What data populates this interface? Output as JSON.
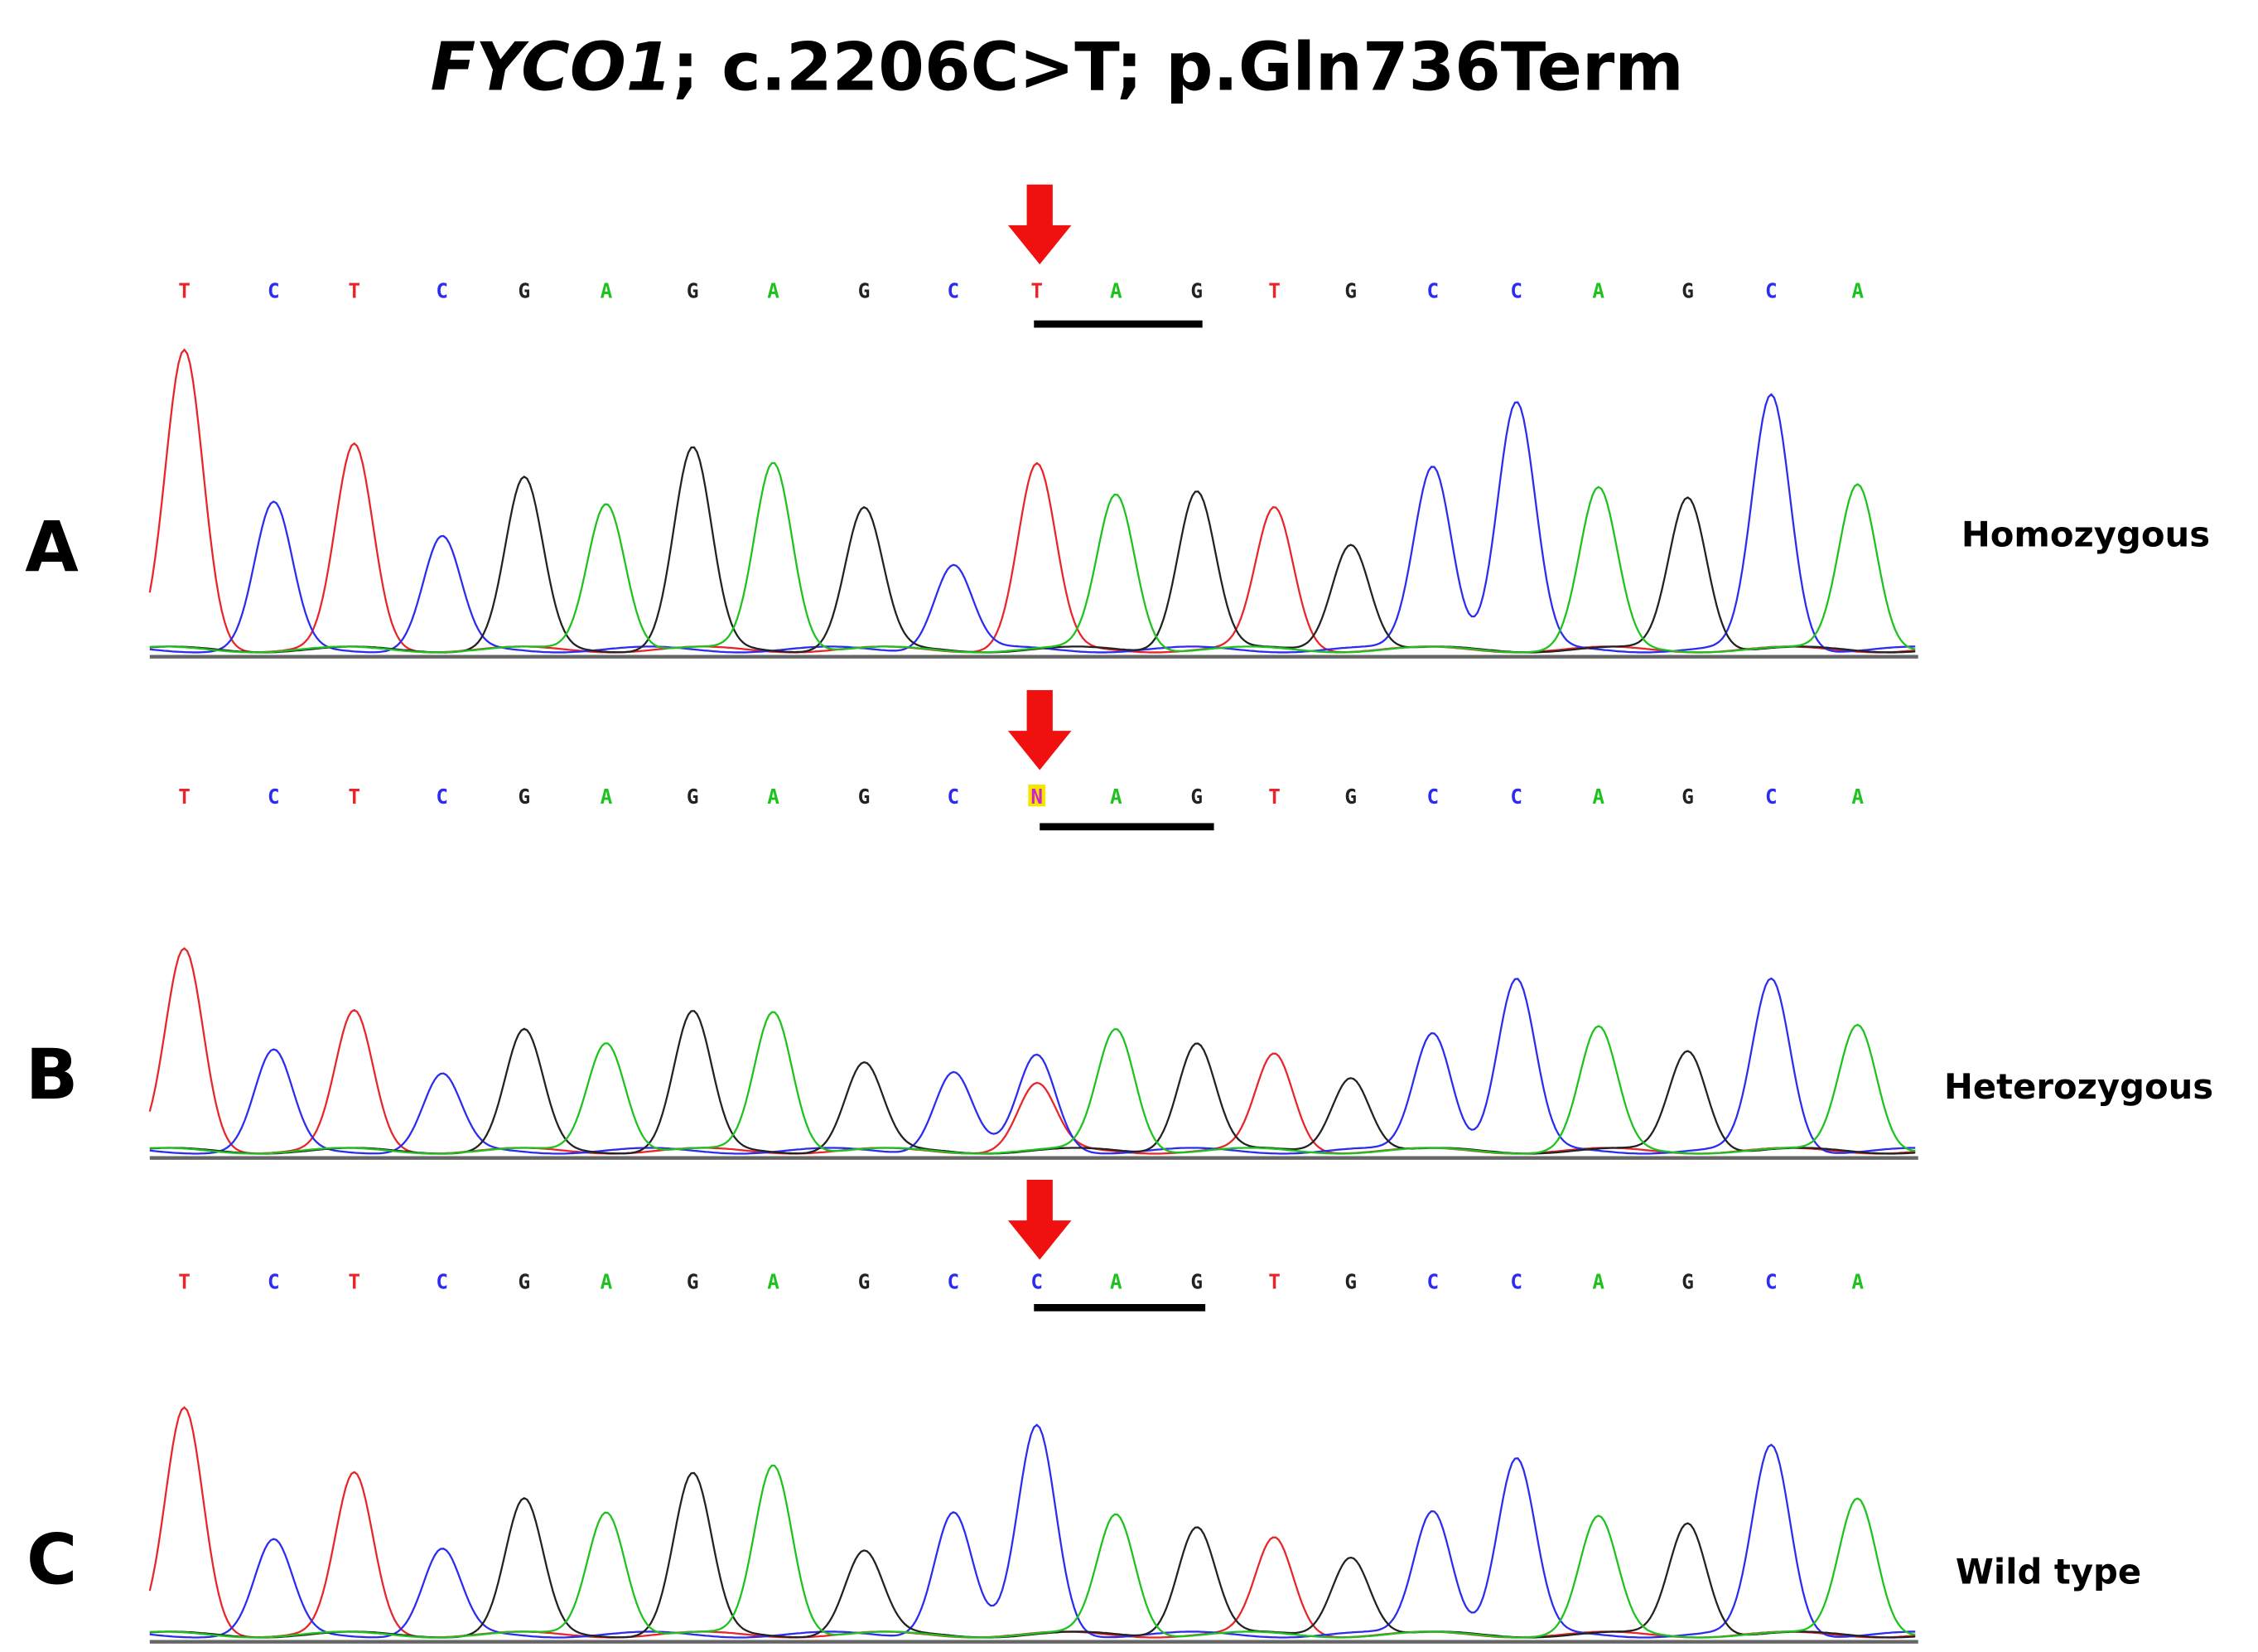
{
  "figure": {
    "title_gene": "FYCO1",
    "title_rest": "; c.2206C>T; p.Gln736Term",
    "panels": [
      {
        "letter": "A",
        "genotype": "Homozygous",
        "bases": [
          "T",
          "C",
          "T",
          "C",
          "G",
          "A",
          "G",
          "A",
          "G",
          "C",
          "T",
          "A",
          "G",
          "T",
          "G",
          "C",
          "C",
          "A",
          "G",
          "C",
          "A"
        ]
      },
      {
        "letter": "B",
        "genotype": "Heterozygous",
        "bases": [
          "T",
          "C",
          "T",
          "C",
          "G",
          "A",
          "G",
          "A",
          "G",
          "C",
          "N",
          "A",
          "G",
          "T",
          "G",
          "C",
          "C",
          "A",
          "G",
          "C",
          "A"
        ]
      },
      {
        "letter": "C",
        "genotype": "Wild type",
        "bases": [
          "T",
          "C",
          "T",
          "C",
          "G",
          "A",
          "G",
          "A",
          "G",
          "C",
          "C",
          "A",
          "G",
          "T",
          "G",
          "C",
          "C",
          "A",
          "G",
          "C",
          "A"
        ]
      }
    ]
  }
}
